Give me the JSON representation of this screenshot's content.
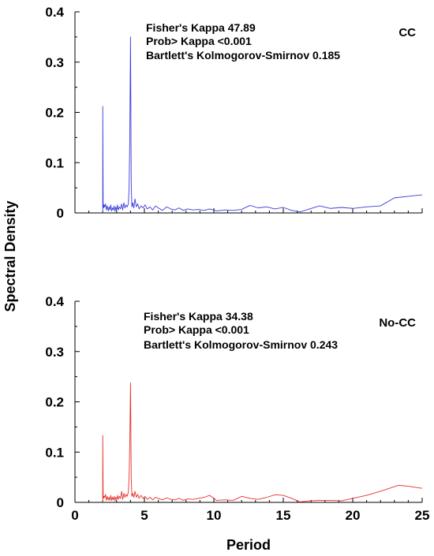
{
  "chart_data": [
    {
      "type": "line",
      "panel_label": "CC",
      "stats": [
        "Fisher's Kappa 47.89",
        "Prob> Kappa <0.001",
        "Bartlett's Kolmogorov-Smirnov 0.185"
      ],
      "xlim": [
        0,
        25
      ],
      "ylim": [
        0,
        0.4
      ],
      "x_ticks": [
        0,
        5,
        10,
        15,
        20,
        25
      ],
      "x_tick_labels": [
        "0",
        "5",
        "10",
        "15",
        "20",
        "25"
      ],
      "y_ticks": [
        0,
        0.1,
        0.2,
        0.3,
        0.4
      ],
      "y_tick_labels": [
        "0",
        "0.1",
        "0.2",
        "0.3",
        "0.4"
      ],
      "series": [
        {
          "color": "#3a3adf",
          "x": [
            2.0,
            2.0,
            2.03,
            2.06,
            2.1,
            2.14,
            2.2,
            2.26,
            2.32,
            2.4,
            2.46,
            2.52,
            2.58,
            2.64,
            2.7,
            2.76,
            2.82,
            2.88,
            2.94,
            3.0,
            3.06,
            3.12,
            3.2,
            3.28,
            3.36,
            3.44,
            3.52,
            3.6,
            3.68,
            3.76,
            3.84,
            3.9,
            3.95,
            4.0,
            4.05,
            4.1,
            4.16,
            4.24,
            4.32,
            4.42,
            4.52,
            4.62,
            4.75,
            4.9,
            5.05,
            5.2,
            5.4,
            5.6,
            5.8,
            6.0,
            6.3,
            6.6,
            6.9,
            7.2,
            7.5,
            7.8,
            8.1,
            8.5,
            8.9,
            9.3,
            9.7,
            10.2,
            10.8,
            11.4,
            12.0,
            12.6,
            13.2,
            13.8,
            14.4,
            15.0,
            15.6,
            16.2,
            16.9,
            17.6,
            18.4,
            19.2,
            20.0,
            21.0,
            22.0,
            23.0,
            24.0,
            25.0
          ],
          "y": [
            0.0,
            0.212,
            0.02,
            0.01,
            0.016,
            0.012,
            0.018,
            0.006,
            0.014,
            0.004,
            0.012,
            0.006,
            0.016,
            0.004,
            0.01,
            0.006,
            0.014,
            0.003,
            0.012,
            0.005,
            0.016,
            0.006,
            0.012,
            0.008,
            0.018,
            0.006,
            0.02,
            0.01,
            0.016,
            0.012,
            0.018,
            0.05,
            0.15,
            0.35,
            0.06,
            0.012,
            0.02,
            0.01,
            0.028,
            0.012,
            0.018,
            0.008,
            0.014,
            0.01,
            0.016,
            0.008,
            0.012,
            0.006,
            0.014,
            0.01,
            0.005,
            0.012,
            0.008,
            0.006,
            0.01,
            0.005,
            0.008,
            0.006,
            0.007,
            0.005,
            0.008,
            0.004,
            0.006,
            0.005,
            0.007,
            0.015,
            0.01,
            0.012,
            0.008,
            0.011,
            0.005,
            0.002,
            0.008,
            0.014,
            0.009,
            0.011,
            0.009,
            0.012,
            0.014,
            0.03,
            0.033,
            0.036
          ]
        }
      ]
    },
    {
      "type": "line",
      "panel_label": "No-CC",
      "stats": [
        "Fisher's Kappa 34.38",
        "Prob> Kappa <0.001",
        "Bartlett's Kolmogorov-Smirnov 0.243"
      ],
      "xlim": [
        0,
        25
      ],
      "ylim": [
        0,
        0.4
      ],
      "x_ticks": [
        0,
        5,
        10,
        15,
        20,
        25
      ],
      "x_tick_labels": [
        "0",
        "5",
        "10",
        "15",
        "20",
        "25"
      ],
      "y_ticks": [
        0,
        0.1,
        0.2,
        0.3,
        0.4
      ],
      "y_tick_labels": [
        "0",
        "0.1",
        "0.2",
        "0.3",
        "0.4"
      ],
      "series": [
        {
          "color": "#e8302a",
          "x": [
            2.0,
            2.0,
            2.03,
            2.06,
            2.1,
            2.14,
            2.2,
            2.26,
            2.32,
            2.4,
            2.46,
            2.52,
            2.58,
            2.64,
            2.7,
            2.76,
            2.82,
            2.88,
            2.94,
            3.0,
            3.06,
            3.12,
            3.2,
            3.28,
            3.36,
            3.44,
            3.52,
            3.6,
            3.68,
            3.76,
            3.84,
            3.9,
            3.95,
            4.0,
            4.05,
            4.1,
            4.16,
            4.24,
            4.32,
            4.42,
            4.52,
            4.62,
            4.75,
            4.9,
            5.05,
            5.2,
            5.4,
            5.6,
            5.8,
            6.0,
            6.3,
            6.6,
            6.9,
            7.2,
            7.5,
            7.8,
            8.1,
            8.5,
            8.9,
            9.3,
            9.7,
            10.2,
            10.8,
            11.4,
            12.0,
            12.6,
            13.2,
            13.8,
            14.4,
            15.0,
            15.6,
            16.2,
            16.9,
            17.6,
            18.4,
            19.2,
            20.0,
            21.0,
            22.0,
            23.3,
            24.0,
            25.0
          ],
          "y": [
            0.0,
            0.133,
            0.015,
            0.008,
            0.012,
            0.01,
            0.016,
            0.004,
            0.012,
            0.005,
            0.01,
            0.004,
            0.014,
            0.004,
            0.01,
            0.005,
            0.012,
            0.003,
            0.01,
            0.006,
            0.014,
            0.006,
            0.012,
            0.008,
            0.022,
            0.006,
            0.018,
            0.01,
            0.016,
            0.012,
            0.02,
            0.05,
            0.12,
            0.238,
            0.05,
            0.012,
            0.018,
            0.01,
            0.022,
            0.01,
            0.016,
            0.008,
            0.014,
            0.008,
            0.012,
            0.006,
            0.01,
            0.005,
            0.01,
            0.008,
            0.005,
            0.009,
            0.006,
            0.005,
            0.008,
            0.004,
            0.007,
            0.006,
            0.008,
            0.01,
            0.014,
            0.004,
            0.005,
            0.004,
            0.012,
            0.008,
            0.006,
            0.01,
            0.015,
            0.014,
            0.008,
            0.001,
            0.003,
            0.004,
            0.004,
            0.003,
            0.008,
            0.014,
            0.022,
            0.034,
            0.032,
            0.028
          ]
        }
      ]
    }
  ],
  "y_axis_title": "Spectral Density",
  "x_axis_title": "Period"
}
